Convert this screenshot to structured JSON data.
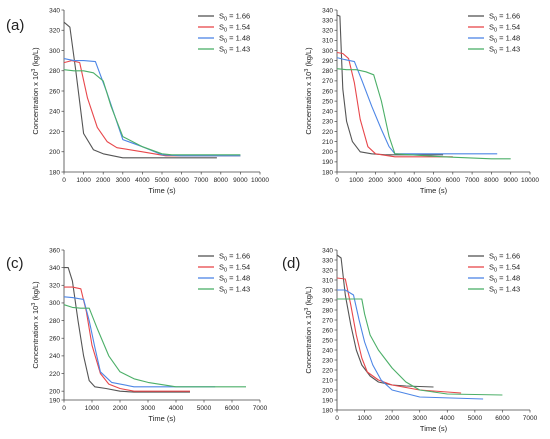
{
  "chart_data": [
    {
      "type": "line",
      "panel_label": "(a)",
      "xlabel": "Time (s)",
      "ylabel": "Concentration x 10",
      "ylabel_sup": "3",
      "ylabel_unit": " (kg/L)",
      "xlim": [
        0,
        10000
      ],
      "ylim": [
        180,
        340
      ],
      "xticks": [
        0,
        1000,
        2000,
        3000,
        4000,
        5000,
        6000,
        7000,
        8000,
        9000,
        10000
      ],
      "yticks": [
        180,
        200,
        220,
        240,
        260,
        280,
        300,
        320,
        340
      ],
      "grid": false,
      "legend_position": "top-right",
      "series": [
        {
          "name": "1.66",
          "legend_prefix": "S",
          "legend_sub": "0",
          "color": "#555555",
          "x": [
            0,
            300,
            600,
            1000,
            1500,
            2000,
            3000,
            4000,
            5000,
            7800
          ],
          "y": [
            328,
            323,
            280,
            218,
            202,
            198,
            194,
            194,
            194,
            194
          ]
        },
        {
          "name": "1.54",
          "legend_prefix": "S",
          "legend_sub": "0",
          "color": "#e8474b",
          "x": [
            0,
            400,
            800,
            1200,
            1700,
            2200,
            2700,
            4000,
            5200,
            9000
          ],
          "y": [
            288,
            290,
            288,
            253,
            224,
            210,
            204,
            200,
            196,
            196
          ]
        },
        {
          "name": "1.48",
          "legend_prefix": "S",
          "legend_sub": "0",
          "color": "#4d86e6",
          "x": [
            0,
            500,
            1000,
            1600,
            2200,
            3000,
            4000,
            5000,
            6000,
            9000
          ],
          "y": [
            292,
            290,
            290,
            289,
            258,
            212,
            205,
            197,
            196,
            196
          ]
        },
        {
          "name": "1.43",
          "legend_prefix": "S",
          "legend_sub": "0",
          "color": "#4caf68",
          "x": [
            0,
            500,
            1000,
            1500,
            2000,
            2400,
            3000,
            4000,
            5000,
            5500,
            9000
          ],
          "y": [
            281,
            280,
            280,
            278,
            270,
            245,
            215,
            205,
            198,
            197,
            197
          ]
        }
      ]
    },
    {
      "type": "line",
      "panel_label": "",
      "xlabel": "Time (s)",
      "ylabel": "Concentration x 10",
      "ylabel_sup": "3",
      "ylabel_unit": " (kg/L)",
      "xlim": [
        0,
        10000
      ],
      "ylim": [
        180,
        340
      ],
      "xticks": [
        0,
        1000,
        2000,
        3000,
        4000,
        5000,
        6000,
        7000,
        8000,
        9000,
        10000
      ],
      "yticks": [
        180,
        190,
        200,
        210,
        220,
        230,
        240,
        250,
        260,
        270,
        280,
        290,
        300,
        310,
        320,
        330,
        340
      ],
      "grid": false,
      "legend_position": "top-right",
      "series": [
        {
          "name": "1.66",
          "legend_prefix": "S",
          "legend_sub": "0",
          "color": "#555555",
          "x": [
            0,
            150,
            300,
            500,
            800,
            1200,
            1800,
            2500,
            3500,
            5500
          ],
          "y": [
            335,
            334,
            262,
            230,
            210,
            200,
            198,
            197,
            197,
            197
          ]
        },
        {
          "name": "1.54",
          "legend_prefix": "S",
          "legend_sub": "0",
          "color": "#e8474b",
          "x": [
            0,
            300,
            600,
            900,
            1200,
            1600,
            2000,
            3000,
            4000,
            6000
          ],
          "y": [
            298,
            297,
            292,
            268,
            232,
            205,
            198,
            195,
            195,
            195
          ]
        },
        {
          "name": "1.48",
          "legend_prefix": "S",
          "legend_sub": "0",
          "color": "#4d86e6",
          "x": [
            0,
            400,
            900,
            1300,
            1800,
            2300,
            2700,
            3000,
            4000,
            8300
          ],
          "y": [
            293,
            291,
            289,
            270,
            245,
            222,
            205,
            198,
            198,
            198
          ]
        },
        {
          "name": "1.43",
          "legend_prefix": "S",
          "legend_sub": "0",
          "color": "#4caf68",
          "x": [
            0,
            500,
            1000,
            1500,
            1900,
            2300,
            2700,
            3000,
            5500,
            8000,
            9000
          ],
          "y": [
            282,
            281,
            281,
            279,
            276,
            250,
            215,
            198,
            195,
            193,
            193
          ]
        }
      ]
    },
    {
      "type": "line",
      "panel_label": "(c)",
      "xlabel": "Time (s)",
      "ylabel": "Concentration x 10",
      "ylabel_sup": "3",
      "ylabel_unit": " (kg/L)",
      "xlim": [
        0,
        7000
      ],
      "ylim": [
        190,
        360
      ],
      "xticks": [
        0,
        1000,
        2000,
        3000,
        4000,
        5000,
        6000,
        7000
      ],
      "yticks": [
        190,
        200,
        220,
        240,
        260,
        280,
        300,
        320,
        340,
        360
      ],
      "grid": false,
      "legend_position": "top-right",
      "series": [
        {
          "name": "1.66",
          "legend_prefix": "S",
          "legend_sub": "0",
          "color": "#555555",
          "x": [
            0,
            150,
            300,
            500,
            700,
            900,
            1100,
            1500,
            2000,
            2500,
            4500
          ],
          "y": [
            340,
            340,
            325,
            280,
            240,
            212,
            205,
            203,
            200,
            199,
            199
          ]
        },
        {
          "name": "1.54",
          "legend_prefix": "S",
          "legend_sub": "0",
          "color": "#e8474b",
          "x": [
            0,
            300,
            600,
            800,
            1000,
            1300,
            1600,
            2000,
            2500,
            4500
          ],
          "y": [
            318,
            318,
            316,
            290,
            252,
            220,
            208,
            203,
            200,
            200
          ]
        },
        {
          "name": "1.48",
          "legend_prefix": "S",
          "legend_sub": "0",
          "color": "#4d86e6",
          "x": [
            0,
            300,
            700,
            900,
            1100,
            1300,
            1700,
            2500,
            5400
          ],
          "y": [
            307,
            306,
            304,
            280,
            250,
            222,
            210,
            205,
            205
          ]
        },
        {
          "name": "1.43",
          "legend_prefix": "S",
          "legend_sub": "0",
          "color": "#4caf68",
          "x": [
            0,
            300,
            600,
            900,
            1200,
            1600,
            2000,
            2500,
            3000,
            4000,
            6500
          ],
          "y": [
            298,
            295,
            294,
            294,
            270,
            240,
            222,
            214,
            210,
            205,
            205
          ]
        }
      ]
    },
    {
      "type": "line",
      "panel_label": "(d)",
      "xlabel": "Time (s)",
      "ylabel": "Concentration x 10",
      "ylabel_sup": "3",
      "ylabel_unit": " (kg/L)",
      "xlim": [
        0,
        7000
      ],
      "ylim": [
        180,
        340
      ],
      "xticks": [
        0,
        1000,
        2000,
        3000,
        4000,
        5000,
        6000,
        7000
      ],
      "yticks": [
        180,
        190,
        200,
        210,
        220,
        230,
        240,
        250,
        260,
        270,
        280,
        290,
        300,
        310,
        320,
        330,
        340
      ],
      "grid": false,
      "legend_position": "top-right",
      "series": [
        {
          "name": "1.66",
          "legend_prefix": "S",
          "legend_sub": "0",
          "color": "#555555",
          "x": [
            0,
            150,
            300,
            500,
            700,
            900,
            1200,
            1500,
            2000,
            2500,
            3500
          ],
          "y": [
            335,
            332,
            295,
            265,
            240,
            225,
            214,
            208,
            205,
            204,
            203
          ]
        },
        {
          "name": "1.54",
          "legend_prefix": "S",
          "legend_sub": "0",
          "color": "#e8474b",
          "x": [
            0,
            300,
            500,
            700,
            900,
            1100,
            1500,
            2000,
            3000,
            4500
          ],
          "y": [
            312,
            311,
            285,
            255,
            232,
            218,
            210,
            205,
            200,
            197
          ]
        },
        {
          "name": "1.48",
          "legend_prefix": "S",
          "legend_sub": "0",
          "color": "#4d86e6",
          "x": [
            0,
            300,
            600,
            800,
            1000,
            1300,
            1600,
            2000,
            3000,
            5300
          ],
          "y": [
            300,
            300,
            295,
            270,
            248,
            225,
            210,
            200,
            193,
            191
          ]
        },
        {
          "name": "1.43",
          "legend_prefix": "S",
          "legend_sub": "0",
          "color": "#4caf68",
          "x": [
            0,
            300,
            900,
            1000,
            1200,
            1500,
            2000,
            2500,
            3000,
            4000,
            6000
          ],
          "y": [
            291,
            291,
            291,
            276,
            255,
            240,
            222,
            208,
            200,
            196,
            195
          ]
        }
      ]
    }
  ]
}
